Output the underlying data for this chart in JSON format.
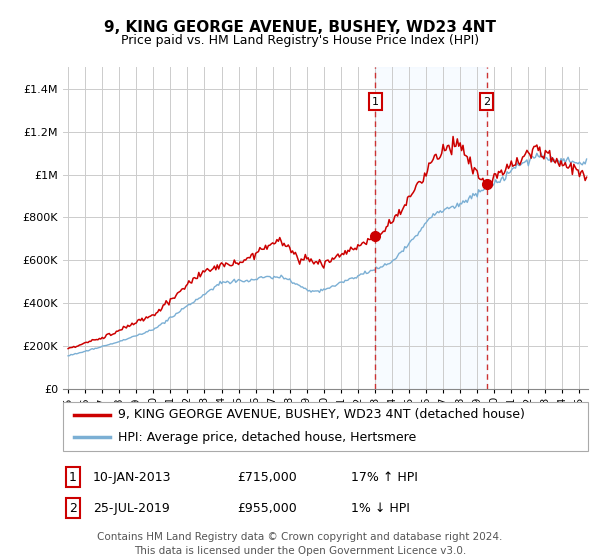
{
  "title": "9, KING GEORGE AVENUE, BUSHEY, WD23 4NT",
  "subtitle": "Price paid vs. HM Land Registry's House Price Index (HPI)",
  "ylabel_ticks": [
    "£0",
    "£200K",
    "£400K",
    "£600K",
    "£800K",
    "£1M",
    "£1.2M",
    "£1.4M"
  ],
  "ytick_values": [
    0,
    200000,
    400000,
    600000,
    800000,
    1000000,
    1200000,
    1400000
  ],
  "ylim": [
    0,
    1500000
  ],
  "xlim_start": 1994.7,
  "xlim_end": 2025.5,
  "xticks": [
    1995,
    1996,
    1997,
    1998,
    1999,
    2000,
    2001,
    2002,
    2003,
    2004,
    2005,
    2006,
    2007,
    2008,
    2009,
    2010,
    2011,
    2012,
    2013,
    2014,
    2015,
    2016,
    2017,
    2018,
    2019,
    2020,
    2021,
    2022,
    2023,
    2024,
    2025
  ],
  "vline1_x": 2013.03,
  "vline2_x": 2019.55,
  "sale1_date": "10-JAN-2013",
  "sale1_price": "£715,000",
  "sale1_hpi": "17% ↑ HPI",
  "sale1_val": 715000,
  "sale2_date": "25-JUL-2019",
  "sale2_price": "£955,000",
  "sale2_hpi": "1% ↓ HPI",
  "sale2_val": 955000,
  "legend1": "9, KING GEORGE AVENUE, BUSHEY, WD23 4NT (detached house)",
  "legend2": "HPI: Average price, detached house, Hertsmere",
  "footer": "Contains HM Land Registry data © Crown copyright and database right 2024.\nThis data is licensed under the Open Government Licence v3.0.",
  "line1_color": "#cc0000",
  "line2_color": "#7bafd4",
  "shade_color": "#ddeeff",
  "vline_color": "#cc3333",
  "background_color": "#ffffff",
  "grid_color": "#cccccc",
  "sale_box_color": "#cc0000",
  "dot_color": "#cc0000",
  "title_fontsize": 11,
  "subtitle_fontsize": 9,
  "tick_fontsize": 8,
  "legend_fontsize": 9,
  "annot_fontsize": 9,
  "footer_fontsize": 7.5
}
